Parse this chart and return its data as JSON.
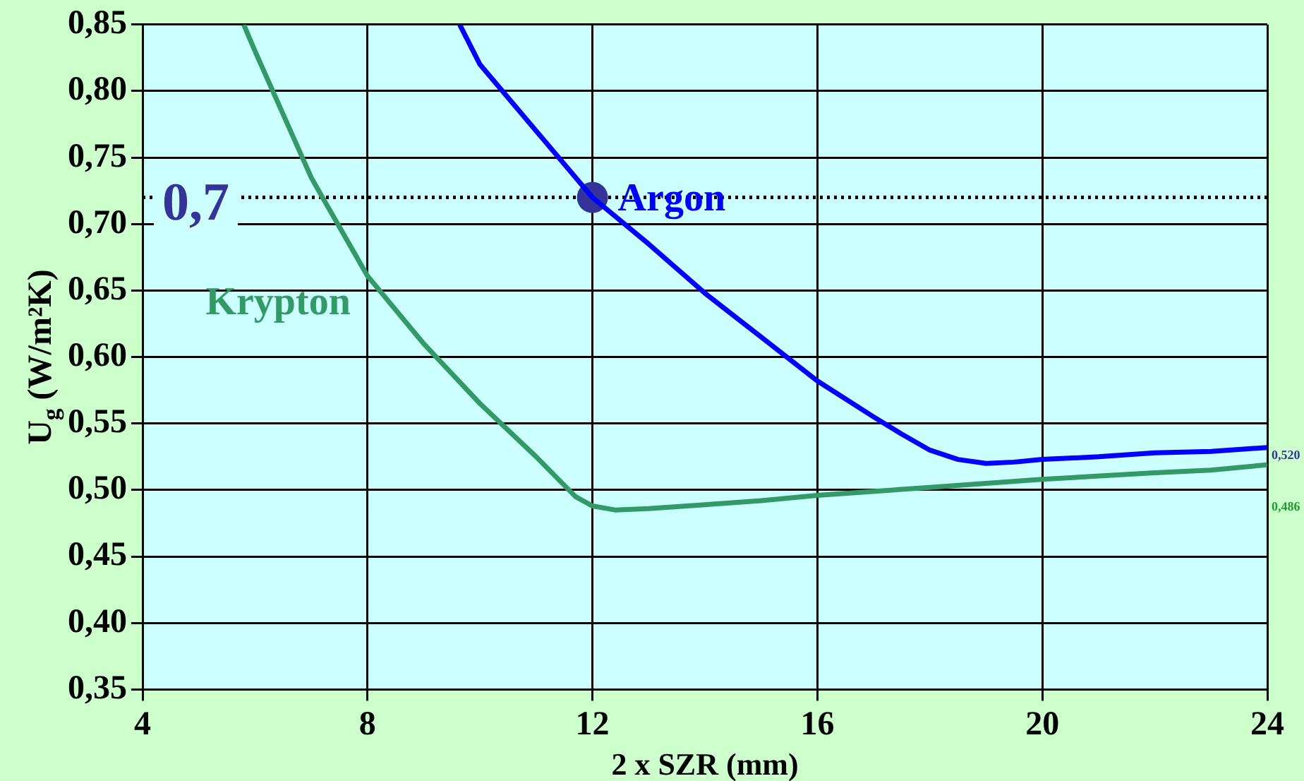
{
  "chart_data": {
    "type": "line",
    "xlabel": "2 x SZR (mm)",
    "ylabel": "U$_{g}$ (W/m²K)",
    "xlim": [
      4,
      24
    ],
    "xticks": [
      4,
      8,
      12,
      16,
      20,
      24
    ],
    "ylim": [
      0.35,
      0.85
    ],
    "yticks": [
      {
        "value": 0.35,
        "label": "0,35"
      },
      {
        "value": 0.4,
        "label": "0,40"
      },
      {
        "value": 0.45,
        "label": "0,45"
      },
      {
        "value": 0.5,
        "label": "0,50"
      },
      {
        "value": 0.55,
        "label": "0,55"
      },
      {
        "value": 0.6,
        "label": "0,60"
      },
      {
        "value": 0.65,
        "label": "0,65"
      },
      {
        "value": 0.7,
        "label": "0,70"
      },
      {
        "value": 0.75,
        "label": "0,75"
      },
      {
        "value": 0.8,
        "label": "0,80"
      },
      {
        "value": 0.85,
        "label": "0,85"
      }
    ],
    "grid": true,
    "legend": false,
    "marker": "none",
    "line_style": "solid",
    "series": [
      {
        "name": "Argon",
        "color": "#0000ff",
        "x": [
          9.64,
          10,
          11,
          12,
          13,
          14,
          15,
          16,
          17,
          17.5,
          18,
          18.5,
          19,
          19.5,
          20,
          21,
          22,
          23,
          24
        ],
        "values": [
          0.85,
          0.82,
          0.77,
          0.72,
          0.685,
          0.648,
          0.615,
          0.582,
          0.555,
          0.542,
          0.53,
          0.523,
          0.52,
          0.521,
          0.523,
          0.525,
          0.528,
          0.529,
          0.532
        ]
      },
      {
        "name": "Krypton",
        "color": "#339966",
        "x": [
          5.8,
          6,
          7,
          7.2,
          8,
          9,
          10,
          11,
          11.7,
          12,
          12.4,
          13,
          14,
          15,
          16,
          18,
          20,
          22,
          23,
          24
        ],
        "values": [
          0.85,
          0.83,
          0.735,
          0.72,
          0.661,
          0.61,
          0.565,
          0.525,
          0.495,
          0.488,
          0.485,
          0.486,
          0.489,
          0.492,
          0.496,
          0.502,
          0.508,
          0.513,
          0.515,
          0.519
        ]
      },
      {
        "type": "scatter",
        "color": "#333399",
        "marker": "circle",
        "x": [
          12
        ],
        "values": [
          0.72
        ]
      }
    ],
    "ref_lines": [
      {
        "axis": "y",
        "value": 0.72,
        "label": "0,7",
        "color": "#000000",
        "line_style": "dotted"
      }
    ],
    "annotations": [
      "0,520",
      "0,486"
    ]
  }
}
